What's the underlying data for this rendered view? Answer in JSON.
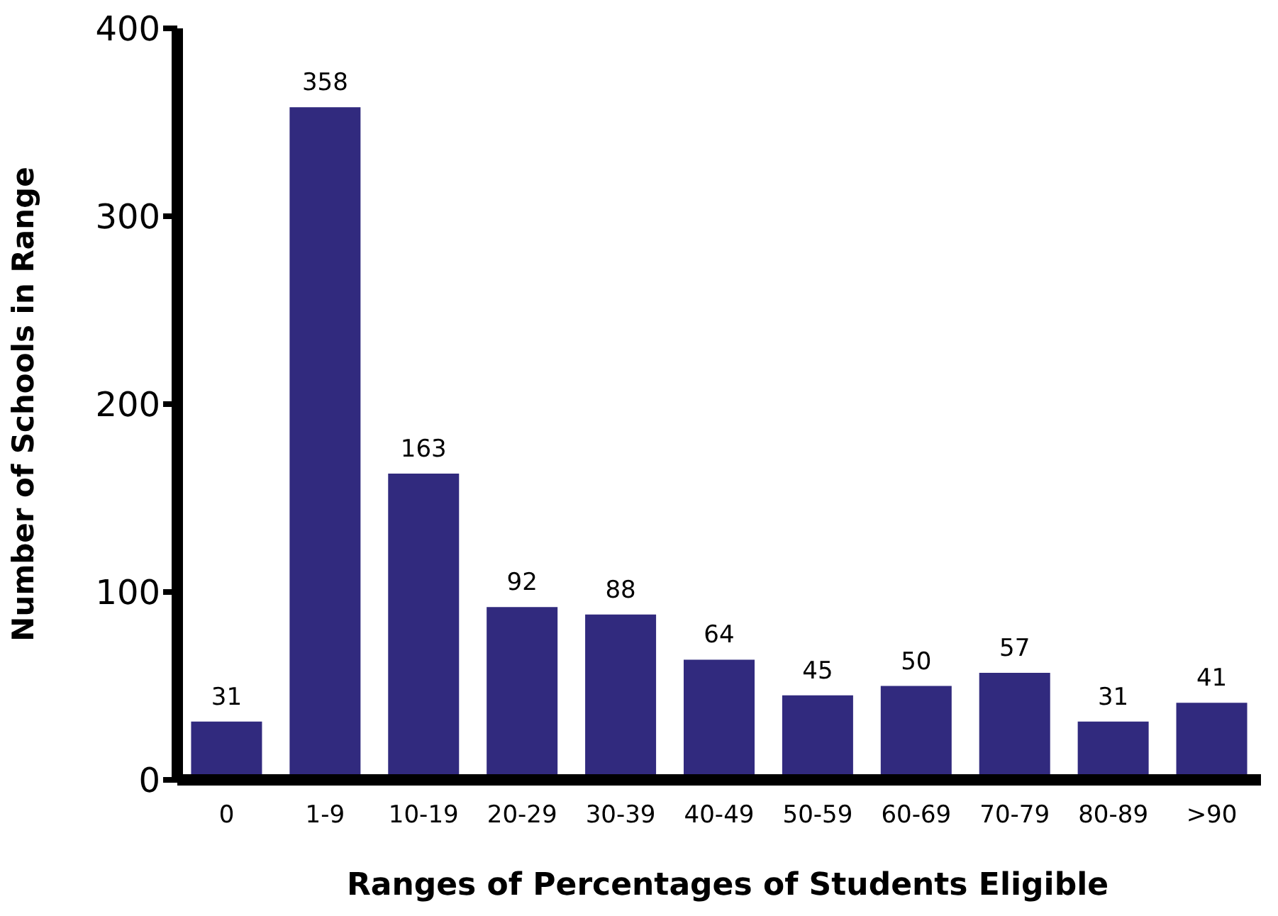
{
  "chart_data": {
    "type": "bar",
    "xlabel": "Ranges of Percentages of Students Eligible",
    "ylabel": "Number of Schools in Range",
    "categories": [
      "0",
      "1-9",
      "10-19",
      "20-29",
      "30-39",
      "40-49",
      "50-59",
      "60-69",
      "70-79",
      "80-89",
      ">90"
    ],
    "values": [
      31,
      358,
      163,
      92,
      88,
      64,
      45,
      50,
      57,
      31,
      41
    ],
    "color": "#312a7e",
    "ylim": [
      0,
      400
    ],
    "yticks": [
      0,
      100,
      200,
      300,
      400
    ],
    "grid": false,
    "data_labels": true
  }
}
